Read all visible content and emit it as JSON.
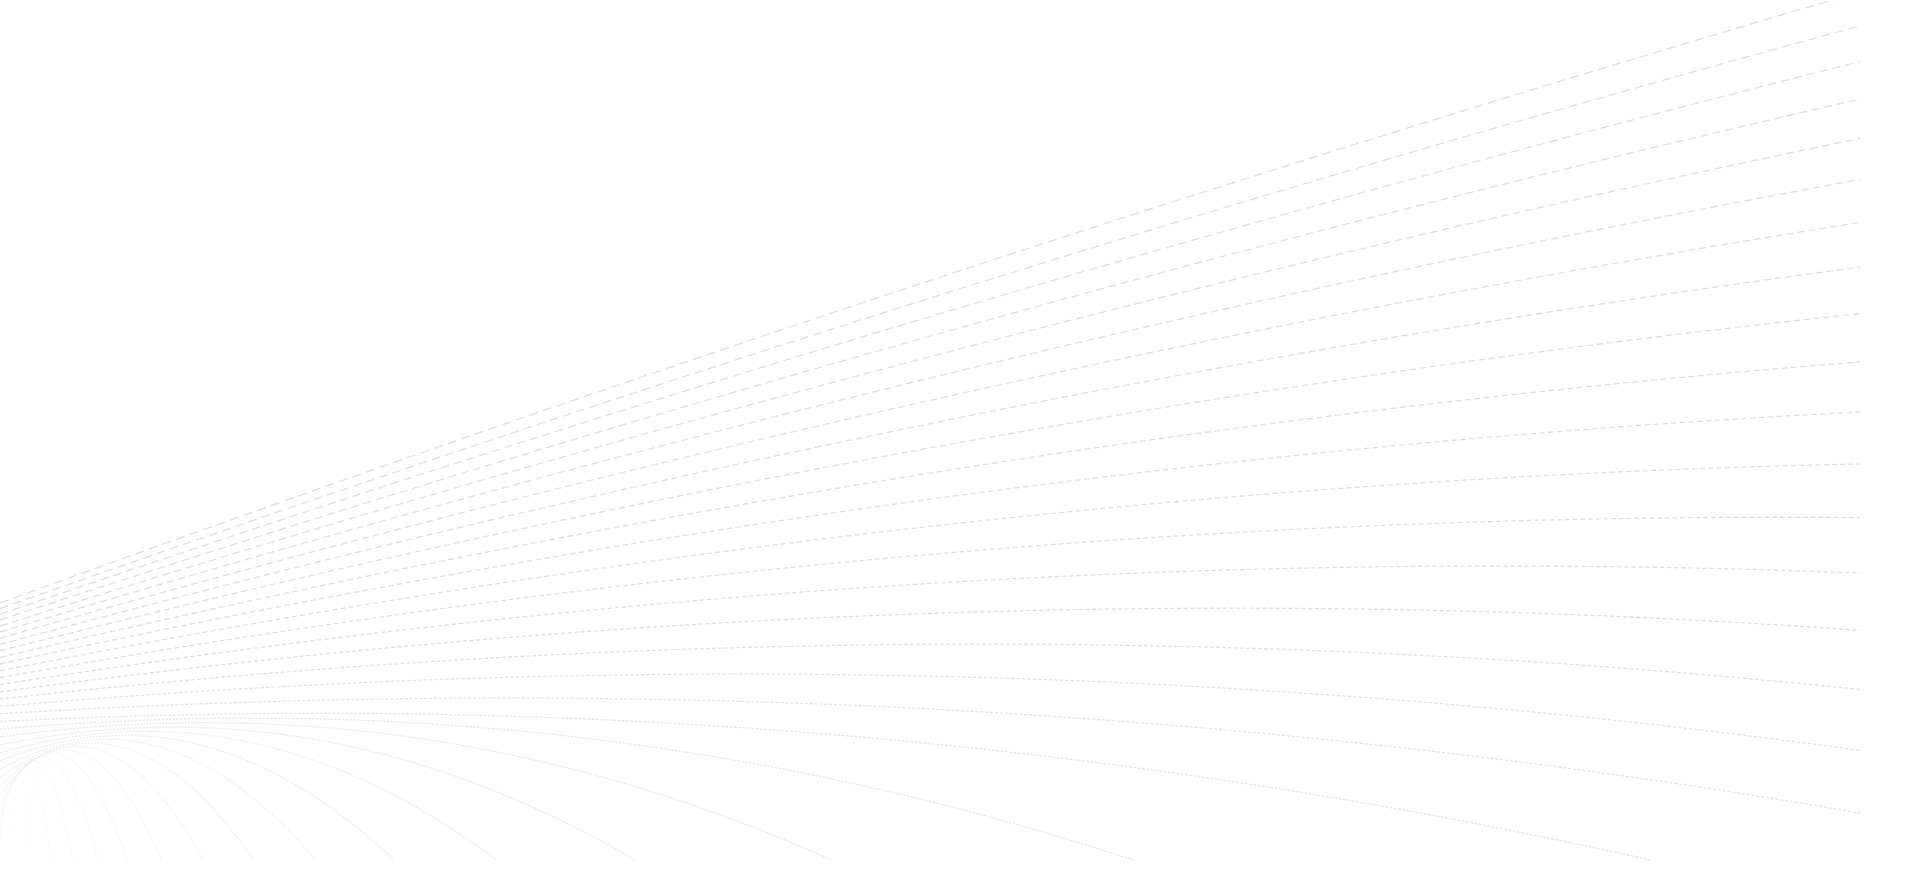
{
  "background": {
    "color": "#ffffff",
    "line_color": "#d6d6d6",
    "pattern": "dashed-curved-wave-lines"
  }
}
